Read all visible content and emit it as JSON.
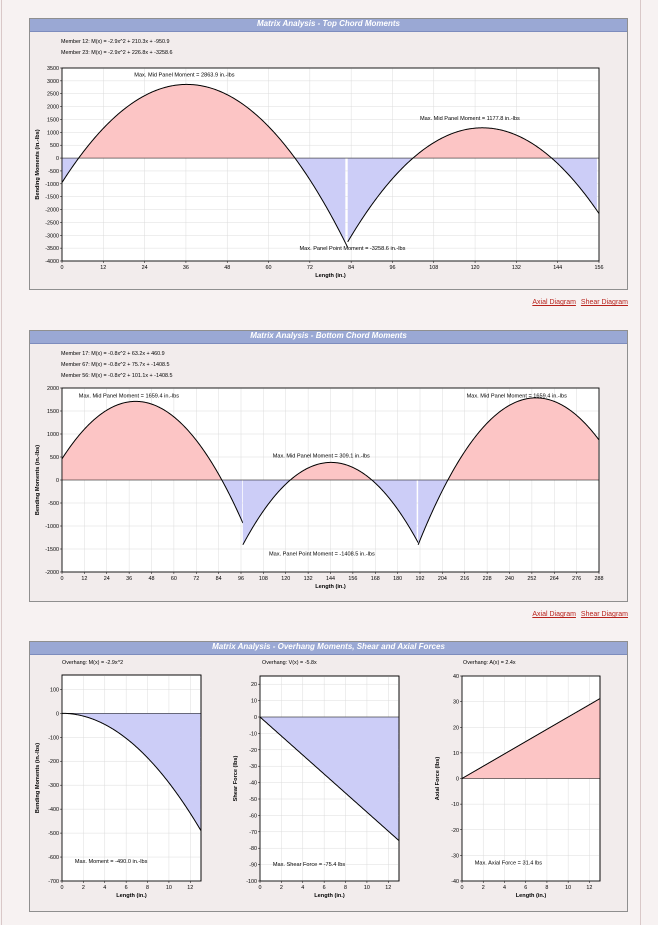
{
  "charts": [
    {
      "id": "top",
      "title": "Matrix Analysis - Top Chord Moments",
      "legend": [
        "Member 12:  M(x) = -2.9x^2 + 210.3x + -950.9",
        "Member 23:  M(x) = -2.9x^2 + 226.8x + -3258.6"
      ],
      "chart_data": {
        "type": "area",
        "xlabel": "Length (in.)",
        "ylabel": "Bending Moments (in.-lbs)",
        "xlim": [
          0,
          156
        ],
        "ylim": [
          -4000,
          3500
        ],
        "xticks": [
          0,
          12,
          24,
          36,
          48,
          60,
          72,
          84,
          96,
          108,
          120,
          132,
          144,
          156
        ],
        "yticks": [
          -4000,
          -3500,
          -3000,
          -2500,
          -2000,
          -1500,
          -1000,
          -500,
          0,
          500,
          1000,
          1500,
          2000,
          2500,
          3000,
          3500
        ],
        "segments": [
          {
            "x0": 0,
            "x1": 83,
            "a": -2.9,
            "b": 210.3,
            "c": -950.9,
            "shift": 0
          },
          {
            "x0": 83,
            "x1": 156,
            "a": -2.9,
            "b": 226.8,
            "c": -3258.6,
            "shift": 83
          }
        ],
        "annotations": [
          {
            "text": "Max. Mid Panel Moment = 2863.9 in.-lbs",
            "x": 21,
            "y": 3170,
            "anchor": "start"
          },
          {
            "text": "Max. Mid Panel Moment = 1177.8 in.-lbs",
            "x": 104,
            "y": 1480,
            "anchor": "start"
          },
          {
            "text": "Max. Panel Point Moment = -3258.6 in.-lbs",
            "x": 69,
            "y": -3580,
            "anchor": "start"
          }
        ]
      }
    },
    {
      "id": "bottom",
      "title": "Matrix Analysis - Bottom Chord Moments",
      "legend": [
        "Member 17:  M(x) = -0.8x^2 + 63.2x + 460.9",
        "Member 67:  M(x) = -0.8x^2 + 75.7x + -1408.5",
        "Member 56:  M(x) = -0.8x^2 + 101.1x + -1408.5"
      ],
      "chart_data": {
        "type": "area",
        "xlabel": "Length (in.)",
        "ylabel": "Bending Moments (in.-lbs)",
        "xlim": [
          0,
          288
        ],
        "ylim": [
          -2000,
          2000
        ],
        "xticks": [
          0,
          12,
          24,
          36,
          48,
          60,
          72,
          84,
          96,
          108,
          120,
          132,
          144,
          156,
          168,
          180,
          192,
          204,
          216,
          228,
          240,
          252,
          264,
          276,
          288
        ],
        "yticks": [
          -2000,
          -1500,
          -1000,
          -500,
          0,
          500,
          1000,
          1500,
          2000
        ],
        "segments": [
          {
            "x0": 0,
            "x1": 97,
            "a": -0.8,
            "b": 63.2,
            "c": 460.9,
            "shift": 0
          },
          {
            "x0": 97,
            "x1": 191,
            "a": -0.8,
            "b": 75.7,
            "c": -1408.5,
            "shift": 97
          },
          {
            "x0": 191,
            "x1": 288,
            "a": -0.8,
            "b": 101.1,
            "c": -1408.5,
            "shift": 191
          }
        ],
        "annotations": [
          {
            "text": "Max. Mid Panel Moment = 1659.4 in.-lbs",
            "x": 9,
            "y": 1790,
            "anchor": "start"
          },
          {
            "text": "Max. Mid Panel Moment = 1659.4 in.-lbs",
            "x": 217,
            "y": 1790,
            "anchor": "start"
          },
          {
            "text": "Max. Mid Panel Moment = 309.1 in.-lbs",
            "x": 113,
            "y": 490,
            "anchor": "start"
          },
          {
            "text": "Max. Panel Point Moment = -1408.5 in.-lbs",
            "x": 111,
            "y": -1640,
            "anchor": "start"
          }
        ]
      }
    },
    {
      "id": "ov1",
      "title": "Matrix Analysis - Overhang Moments, Shear and Axial Forces",
      "legend": [
        "Overhang:  M(x) = -2.9x^2"
      ],
      "chart_data": {
        "type": "area",
        "xlabel": "Length (in.)",
        "ylabel": "Bending Moments (in.-lbs)",
        "xlim": [
          0,
          13
        ],
        "ylim": [
          -700,
          160
        ],
        "xticks": [
          0,
          2,
          4,
          6,
          8,
          10,
          12
        ],
        "yticks": [
          -700,
          -600,
          -500,
          -400,
          -300,
          -200,
          -100,
          0,
          100
        ],
        "segments": [
          {
            "x0": 0,
            "x1": 13,
            "a": -2.9,
            "b": 0,
            "c": 0,
            "shift": 0
          }
        ],
        "annotations": [
          {
            "text": "Max. Moment = -490.0 in.-lbs",
            "x": 1.2,
            "y": -625,
            "anchor": "start"
          }
        ]
      }
    },
    {
      "id": "ov2",
      "legend": [
        "Overhang:  V(x) = -5.8x"
      ],
      "chart_data": {
        "type": "area",
        "xlabel": "Length (in.)",
        "ylabel": "Shear Force (lbs)",
        "xlim": [
          0,
          13
        ],
        "ylim": [
          -100,
          25
        ],
        "xticks": [
          0,
          2,
          4,
          6,
          8,
          10,
          12
        ],
        "yticks": [
          -100,
          -90,
          -80,
          -70,
          -60,
          -50,
          -40,
          -30,
          -20,
          -10,
          0,
          10,
          20
        ],
        "segments": [
          {
            "x0": 0,
            "x1": 13,
            "a": 0,
            "b": -5.8,
            "c": 0,
            "shift": 0
          }
        ],
        "annotations": [
          {
            "text": "Max. Shear Force = -75.4 lbs",
            "x": 1.2,
            "y": -91,
            "anchor": "start"
          }
        ]
      }
    },
    {
      "id": "ov3",
      "legend": [
        "Overhang:  A(x) = 2.4x"
      ],
      "chart_data": {
        "type": "area",
        "xlabel": "Length (in.)",
        "ylabel": "Axial Force (lbs)",
        "xlim": [
          0,
          13
        ],
        "ylim": [
          -40,
          40
        ],
        "xticks": [
          0,
          2,
          4,
          6,
          8,
          10,
          12
        ],
        "yticks": [
          -40,
          -30,
          -20,
          -10,
          0,
          10,
          20,
          30,
          40
        ],
        "segments": [
          {
            "x0": 0,
            "x1": 13,
            "a": 0,
            "b": 2.4,
            "c": 0,
            "shift": 0
          }
        ],
        "annotations": [
          {
            "text": "Max. Axial Force = 31.4 lbs",
            "x": 1.2,
            "y": -33.5,
            "anchor": "start"
          }
        ]
      }
    }
  ],
  "links": {
    "axial": "Axial Diagram",
    "shear": "Shear Diagram"
  },
  "colors": {
    "positive": "#fcc5c5",
    "negative": "#cccdf7",
    "curve": "#000000",
    "grid": "#dcdcdc",
    "title_bg": "#9aa8d4"
  }
}
